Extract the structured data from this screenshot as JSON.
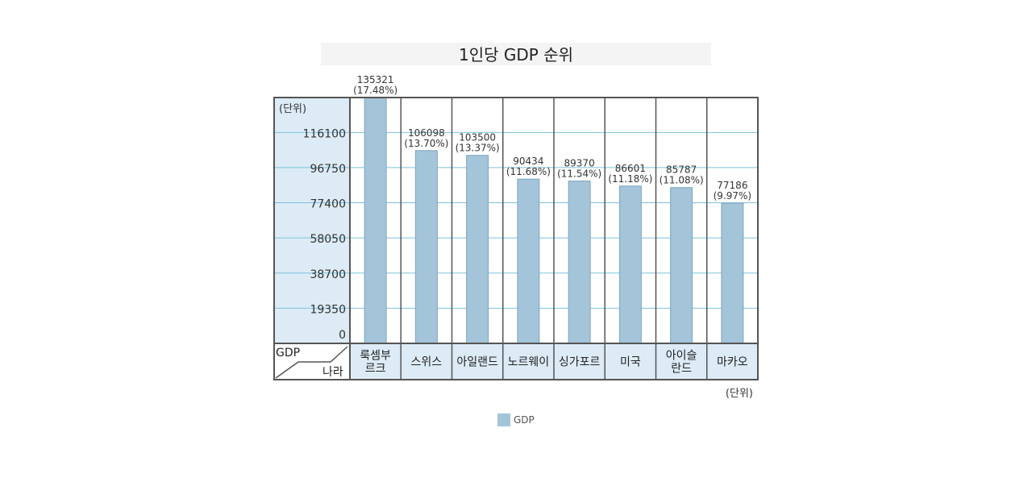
{
  "chart_data": {
    "type": "bar",
    "title": "1인당 GDP 순위",
    "ylabel": "(단위)",
    "bottom_unit": "(단위)",
    "corner_top": "GDP",
    "corner_bottom": "나라",
    "legend": "GDP",
    "ylim": [
      0,
      135321
    ],
    "yticks": [
      0,
      19350,
      38700,
      58050,
      77400,
      96750,
      116100
    ],
    "ytick_labels": [
      "0",
      "19350",
      "38700",
      "58050",
      "77400",
      "96750",
      "116100"
    ],
    "categories": [
      [
        "룩셈부",
        "르크"
      ],
      [
        "스위스"
      ],
      [
        "아일랜드"
      ],
      [
        "노르웨이"
      ],
      [
        "싱가포르"
      ],
      [
        "미국"
      ],
      [
        "아이슬",
        "란드"
      ],
      [
        "마카오"
      ]
    ],
    "values": [
      135321,
      106098,
      103500,
      90434,
      89370,
      86601,
      85787,
      77186
    ],
    "value_labels": [
      "135321",
      "106098",
      "103500",
      "90434",
      "89370",
      "86601",
      "85787",
      "77186"
    ],
    "percent_labels": [
      "(17.48%)",
      "(13.70%)",
      "(13.37%)",
      "(11.68%)",
      "(11.54%)",
      "(11.18%)",
      "(11.08%)",
      "(9.97%)"
    ],
    "colors": {
      "bar": "#a3c4d9",
      "bar_stroke": "#7fa6c0",
      "label_bg": "#dcebf5",
      "grid": "#7cc3de",
      "frame": "#555555",
      "title_bg": "#f4f4f4"
    }
  }
}
